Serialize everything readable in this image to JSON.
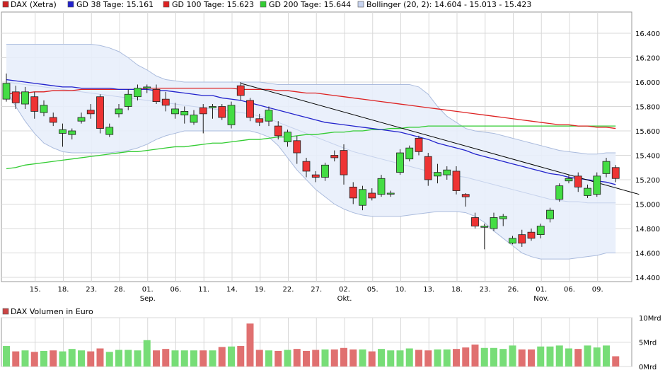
{
  "legend": {
    "items": [
      {
        "label": "DAX (Xetra)",
        "color": "#cc2222"
      },
      {
        "label": "GD 38 Tage: 15.161",
        "color": "#2222cc"
      },
      {
        "label": "GD 100 Tage: 15.623",
        "color": "#dd2222"
      },
      {
        "label": "GD 200 Tage: 15.644",
        "color": "#33cc33"
      },
      {
        "label": "Bollinger (20, 2): 14.604 - 15.013 - 15.423",
        "color": "#aabbee"
      }
    ]
  },
  "volume_legend": {
    "label": "DAX Volumen in Euro",
    "color": "#cc4444"
  },
  "colors": {
    "up": "#44dd44",
    "down": "#ee3333",
    "gd38": "#2222cc",
    "gd100": "#dd2222",
    "gd200": "#33cc33",
    "bollinger_line": "#aabbdd",
    "bollinger_fill": "#e8eefb",
    "trendline": "#000000",
    "vol_up": "#77dd77",
    "vol_down": "#e07070"
  },
  "chart_data": [
    {
      "type": "candlestick",
      "title": "DAX (Xetra)",
      "ylim": [
        14.35,
        16.6
      ],
      "y_ticks": [
        "14.400",
        "14.600",
        "14.800",
        "15.000",
        "15.200",
        "15.400",
        "15.600",
        "15.800",
        "16.000",
        "16.200",
        "16.400"
      ],
      "y_tick_values": [
        14.4,
        14.6,
        14.8,
        15.0,
        15.2,
        15.4,
        15.6,
        15.8,
        16.0,
        16.2,
        16.4
      ],
      "x_ticks": [
        {
          "i": 3,
          "label": "15."
        },
        {
          "i": 6,
          "label": "18."
        },
        {
          "i": 9,
          "label": "23."
        },
        {
          "i": 12,
          "label": "28."
        },
        {
          "i": 15,
          "label": "01.",
          "sub": "Sep."
        },
        {
          "i": 18,
          "label": "06."
        },
        {
          "i": 21,
          "label": "11."
        },
        {
          "i": 24,
          "label": "14."
        },
        {
          "i": 27,
          "label": "19."
        },
        {
          "i": 30,
          "label": "22."
        },
        {
          "i": 33,
          "label": "27."
        },
        {
          "i": 36,
          "label": "02.",
          "sub": "Okt."
        },
        {
          "i": 39,
          "label": "05."
        },
        {
          "i": 42,
          "label": "10."
        },
        {
          "i": 45,
          "label": "13."
        },
        {
          "i": 48,
          "label": "18."
        },
        {
          "i": 51,
          "label": "23."
        },
        {
          "i": 54,
          "label": "26."
        },
        {
          "i": 57,
          "label": "01.",
          "sub": "Nov."
        },
        {
          "i": 60,
          "label": "06."
        },
        {
          "i": 63,
          "label": "09."
        }
      ],
      "candles": [
        [
          15.86,
          15.99,
          16.07,
          15.84
        ],
        [
          15.92,
          15.83,
          15.97,
          15.78
        ],
        [
          15.82,
          15.92,
          15.96,
          15.78
        ],
        [
          15.88,
          15.76,
          15.92,
          15.7
        ],
        [
          15.75,
          15.81,
          15.85,
          15.72
        ],
        [
          15.71,
          15.67,
          15.75,
          15.64
        ],
        [
          15.58,
          15.61,
          15.66,
          15.47
        ],
        [
          15.57,
          15.6,
          15.62,
          15.53
        ],
        [
          15.68,
          15.71,
          15.75,
          15.66
        ],
        [
          15.77,
          15.74,
          15.82,
          15.7
        ],
        [
          15.88,
          15.62,
          15.9,
          15.58
        ],
        [
          15.57,
          15.63,
          15.66,
          15.55
        ],
        [
          15.74,
          15.78,
          15.82,
          15.71
        ],
        [
          15.8,
          15.9,
          15.94,
          15.77
        ],
        [
          15.88,
          15.95,
          15.98,
          15.85
        ],
        [
          15.95,
          15.96,
          15.98,
          15.91
        ],
        [
          15.94,
          15.84,
          15.98,
          15.82
        ],
        [
          15.86,
          15.81,
          15.92,
          15.76
        ],
        [
          15.74,
          15.78,
          15.83,
          15.7
        ],
        [
          15.73,
          15.76,
          15.8,
          15.66
        ],
        [
          15.67,
          15.73,
          15.77,
          15.65
        ],
        [
          15.79,
          15.74,
          15.82,
          15.58
        ],
        [
          15.79,
          15.8,
          15.82,
          15.7
        ],
        [
          15.8,
          15.71,
          15.82,
          15.69
        ],
        [
          15.65,
          15.81,
          15.84,
          15.62
        ],
        [
          15.97,
          15.89,
          16.0,
          15.85
        ],
        [
          15.85,
          15.71,
          15.87,
          15.68
        ],
        [
          15.7,
          15.67,
          15.74,
          15.64
        ],
        [
          15.68,
          15.77,
          15.8,
          15.64
        ],
        [
          15.64,
          15.56,
          15.68,
          15.53
        ],
        [
          15.51,
          15.59,
          15.61,
          15.47
        ],
        [
          15.52,
          15.42,
          15.56,
          15.33
        ],
        [
          15.35,
          15.27,
          15.38,
          15.22
        ],
        [
          15.24,
          15.22,
          15.27,
          15.18
        ],
        [
          15.22,
          15.32,
          15.34,
          15.19
        ],
        [
          15.4,
          15.38,
          15.44,
          15.35
        ],
        [
          15.44,
          15.24,
          15.49,
          15.16
        ],
        [
          15.14,
          15.05,
          15.18,
          15.0
        ],
        [
          14.99,
          15.12,
          15.15,
          14.95
        ],
        [
          15.09,
          15.05,
          15.13,
          15.03
        ],
        [
          15.08,
          15.21,
          15.24,
          15.06
        ],
        [
          15.09,
          15.09,
          15.11,
          15.06
        ],
        [
          15.26,
          15.42,
          15.45,
          15.24
        ],
        [
          15.37,
          15.46,
          15.48,
          15.35
        ],
        [
          15.54,
          15.43,
          15.56,
          15.4
        ],
        [
          15.39,
          15.2,
          15.42,
          15.15
        ],
        [
          15.23,
          15.26,
          15.33,
          15.17
        ],
        [
          15.24,
          15.28,
          15.31,
          15.2
        ],
        [
          15.27,
          15.11,
          15.31,
          15.08
        ],
        [
          15.08,
          15.06,
          15.09,
          14.98
        ],
        [
          14.89,
          14.82,
          14.93,
          14.8
        ],
        [
          14.81,
          14.82,
          14.84,
          14.63
        ],
        [
          14.8,
          14.89,
          14.93,
          14.78
        ],
        [
          14.88,
          14.9,
          14.92,
          14.82
        ],
        [
          14.68,
          14.72,
          14.74,
          14.67
        ],
        [
          14.75,
          14.68,
          14.79,
          14.65
        ],
        [
          14.77,
          14.72,
          14.8,
          14.7
        ],
        [
          14.75,
          14.82,
          14.84,
          14.72
        ],
        [
          14.88,
          14.95,
          14.97,
          14.85
        ],
        [
          15.04,
          15.15,
          15.17,
          15.02
        ],
        [
          15.19,
          15.21,
          15.24,
          15.17
        ],
        [
          15.23,
          15.14,
          15.26,
          15.1
        ],
        [
          15.07,
          15.13,
          15.16,
          15.05
        ],
        [
          15.08,
          15.23,
          15.26,
          15.06
        ],
        [
          15.25,
          15.35,
          15.38,
          15.22
        ],
        [
          15.3,
          15.21,
          15.32,
          15.18
        ]
      ],
      "gd38": [
        16.02,
        16.01,
        16.0,
        15.99,
        15.98,
        15.97,
        15.96,
        15.96,
        15.95,
        15.95,
        15.95,
        15.95,
        15.94,
        15.94,
        15.94,
        15.94,
        15.93,
        15.93,
        15.92,
        15.91,
        15.9,
        15.89,
        15.89,
        15.87,
        15.86,
        15.85,
        15.83,
        15.81,
        15.79,
        15.77,
        15.75,
        15.73,
        15.71,
        15.69,
        15.67,
        15.66,
        15.65,
        15.64,
        15.63,
        15.62,
        15.61,
        15.6,
        15.59,
        15.57,
        15.55,
        15.53,
        15.5,
        15.48,
        15.46,
        15.44,
        15.41,
        15.39,
        15.37,
        15.35,
        15.33,
        15.31,
        15.29,
        15.27,
        15.25,
        15.24,
        15.22,
        15.21,
        15.2,
        15.19,
        15.18,
        15.16
      ],
      "gd100": [
        15.9,
        15.91,
        15.91,
        15.92,
        15.92,
        15.93,
        15.93,
        15.93,
        15.94,
        15.94,
        15.94,
        15.94,
        15.94,
        15.94,
        15.94,
        15.95,
        15.95,
        15.95,
        15.95,
        15.95,
        15.95,
        15.95,
        15.95,
        15.95,
        15.95,
        15.94,
        15.94,
        15.94,
        15.94,
        15.93,
        15.93,
        15.92,
        15.91,
        15.91,
        15.9,
        15.89,
        15.88,
        15.87,
        15.86,
        15.85,
        15.84,
        15.83,
        15.82,
        15.81,
        15.8,
        15.79,
        15.78,
        15.77,
        15.76,
        15.75,
        15.74,
        15.73,
        15.72,
        15.71,
        15.7,
        15.69,
        15.68,
        15.67,
        15.66,
        15.65,
        15.65,
        15.64,
        15.64,
        15.63,
        15.63,
        15.62
      ],
      "gd200": [
        15.29,
        15.3,
        15.32,
        15.33,
        15.34,
        15.35,
        15.36,
        15.37,
        15.38,
        15.39,
        15.4,
        15.41,
        15.42,
        15.43,
        15.43,
        15.44,
        15.45,
        15.46,
        15.47,
        15.47,
        15.48,
        15.49,
        15.5,
        15.5,
        15.51,
        15.52,
        15.53,
        15.53,
        15.54,
        15.55,
        15.55,
        15.56,
        15.57,
        15.57,
        15.58,
        15.59,
        15.59,
        15.6,
        15.6,
        15.61,
        15.61,
        15.62,
        15.62,
        15.63,
        15.63,
        15.64,
        15.64,
        15.64,
        15.64,
        15.64,
        15.64,
        15.64,
        15.64,
        15.64,
        15.64,
        15.64,
        15.64,
        15.64,
        15.64,
        15.64,
        15.64,
        15.64,
        15.64,
        15.64,
        15.64,
        15.64
      ],
      "bollinger_upper": [
        16.31,
        16.31,
        16.31,
        16.31,
        16.31,
        16.31,
        16.31,
        16.31,
        16.31,
        16.31,
        16.3,
        16.28,
        16.25,
        16.2,
        16.14,
        16.1,
        16.05,
        16.02,
        16.01,
        16.0,
        16.0,
        16.0,
        16.0,
        16.0,
        16.0,
        16.0,
        16.0,
        16.0,
        15.99,
        15.98,
        15.98,
        15.98,
        15.98,
        15.98,
        15.98,
        15.98,
        15.98,
        15.98,
        15.98,
        15.98,
        15.98,
        15.98,
        15.98,
        15.98,
        15.96,
        15.9,
        15.8,
        15.72,
        15.67,
        15.62,
        15.6,
        15.59,
        15.58,
        15.56,
        15.54,
        15.52,
        15.5,
        15.48,
        15.46,
        15.44,
        15.43,
        15.42,
        15.41,
        15.41,
        15.42,
        15.42
      ],
      "bollinger_lower": [
        15.93,
        15.8,
        15.68,
        15.58,
        15.5,
        15.46,
        15.43,
        15.42,
        15.42,
        15.42,
        15.42,
        15.42,
        15.43,
        15.44,
        15.46,
        15.49,
        15.53,
        15.56,
        15.58,
        15.6,
        15.6,
        15.6,
        15.6,
        15.6,
        15.6,
        15.6,
        15.6,
        15.58,
        15.55,
        15.48,
        15.38,
        15.28,
        15.2,
        15.12,
        15.06,
        15.0,
        14.96,
        14.93,
        14.91,
        14.9,
        14.9,
        14.9,
        14.9,
        14.91,
        14.92,
        14.93,
        14.94,
        14.94,
        14.94,
        14.93,
        14.9,
        14.85,
        14.78,
        14.72,
        14.66,
        14.6,
        14.57,
        14.55,
        14.55,
        14.55,
        14.55,
        14.56,
        14.57,
        14.58,
        14.6,
        14.6
      ],
      "bollinger_mid": [
        16.0,
        15.99,
        15.98,
        15.97,
        15.96,
        15.95,
        15.94,
        15.93,
        15.92,
        15.91,
        15.9,
        15.89,
        15.88,
        15.87,
        15.86,
        15.85,
        15.84,
        15.83,
        15.82,
        15.81,
        15.8,
        15.79,
        15.78,
        15.77,
        15.76,
        15.75,
        15.74,
        15.72,
        15.7,
        15.67,
        15.64,
        15.61,
        15.58,
        15.55,
        15.52,
        15.49,
        15.46,
        15.43,
        15.41,
        15.39,
        15.37,
        15.35,
        15.33,
        15.31,
        15.29,
        15.27,
        15.25,
        15.24,
        15.23,
        15.22,
        15.2,
        15.18,
        15.16,
        15.14,
        15.12,
        15.1,
        15.08,
        15.06,
        15.04,
        15.03,
        15.02,
        15.02,
        15.01,
        15.01,
        15.01,
        15.01
      ],
      "trendline": {
        "from": [
          25,
          15.99
        ],
        "to": [
          67.5,
          15.08
        ]
      }
    },
    {
      "type": "bar",
      "title": "DAX Volumen in Euro",
      "ylim": [
        0,
        10
      ],
      "y_ticks": [
        "10Mrd",
        "5Mrd",
        "0Mrd"
      ],
      "y_tick_values": [
        10,
        5,
        0
      ],
      "values": [
        4.2,
        3.1,
        3.3,
        3.0,
        3.2,
        3.3,
        3.1,
        3.6,
        3.3,
        3.1,
        3.7,
        3.0,
        3.4,
        3.4,
        3.3,
        5.4,
        3.3,
        3.6,
        3.3,
        3.3,
        3.3,
        3.3,
        3.3,
        4.0,
        4.1,
        4.2,
        8.8,
        3.4,
        3.3,
        3.2,
        3.4,
        3.6,
        3.2,
        3.4,
        3.5,
        3.5,
        3.8,
        3.5,
        3.5,
        3.1,
        3.6,
        3.3,
        3.3,
        3.7,
        3.4,
        3.3,
        3.5,
        3.5,
        3.6,
        3.9,
        4.5,
        3.8,
        3.8,
        3.6,
        4.3,
        3.5,
        3.5,
        4.1,
        4.1,
        4.3,
        3.7,
        3.6,
        4.3,
        3.9,
        4.3,
        2.1
      ]
    }
  ]
}
